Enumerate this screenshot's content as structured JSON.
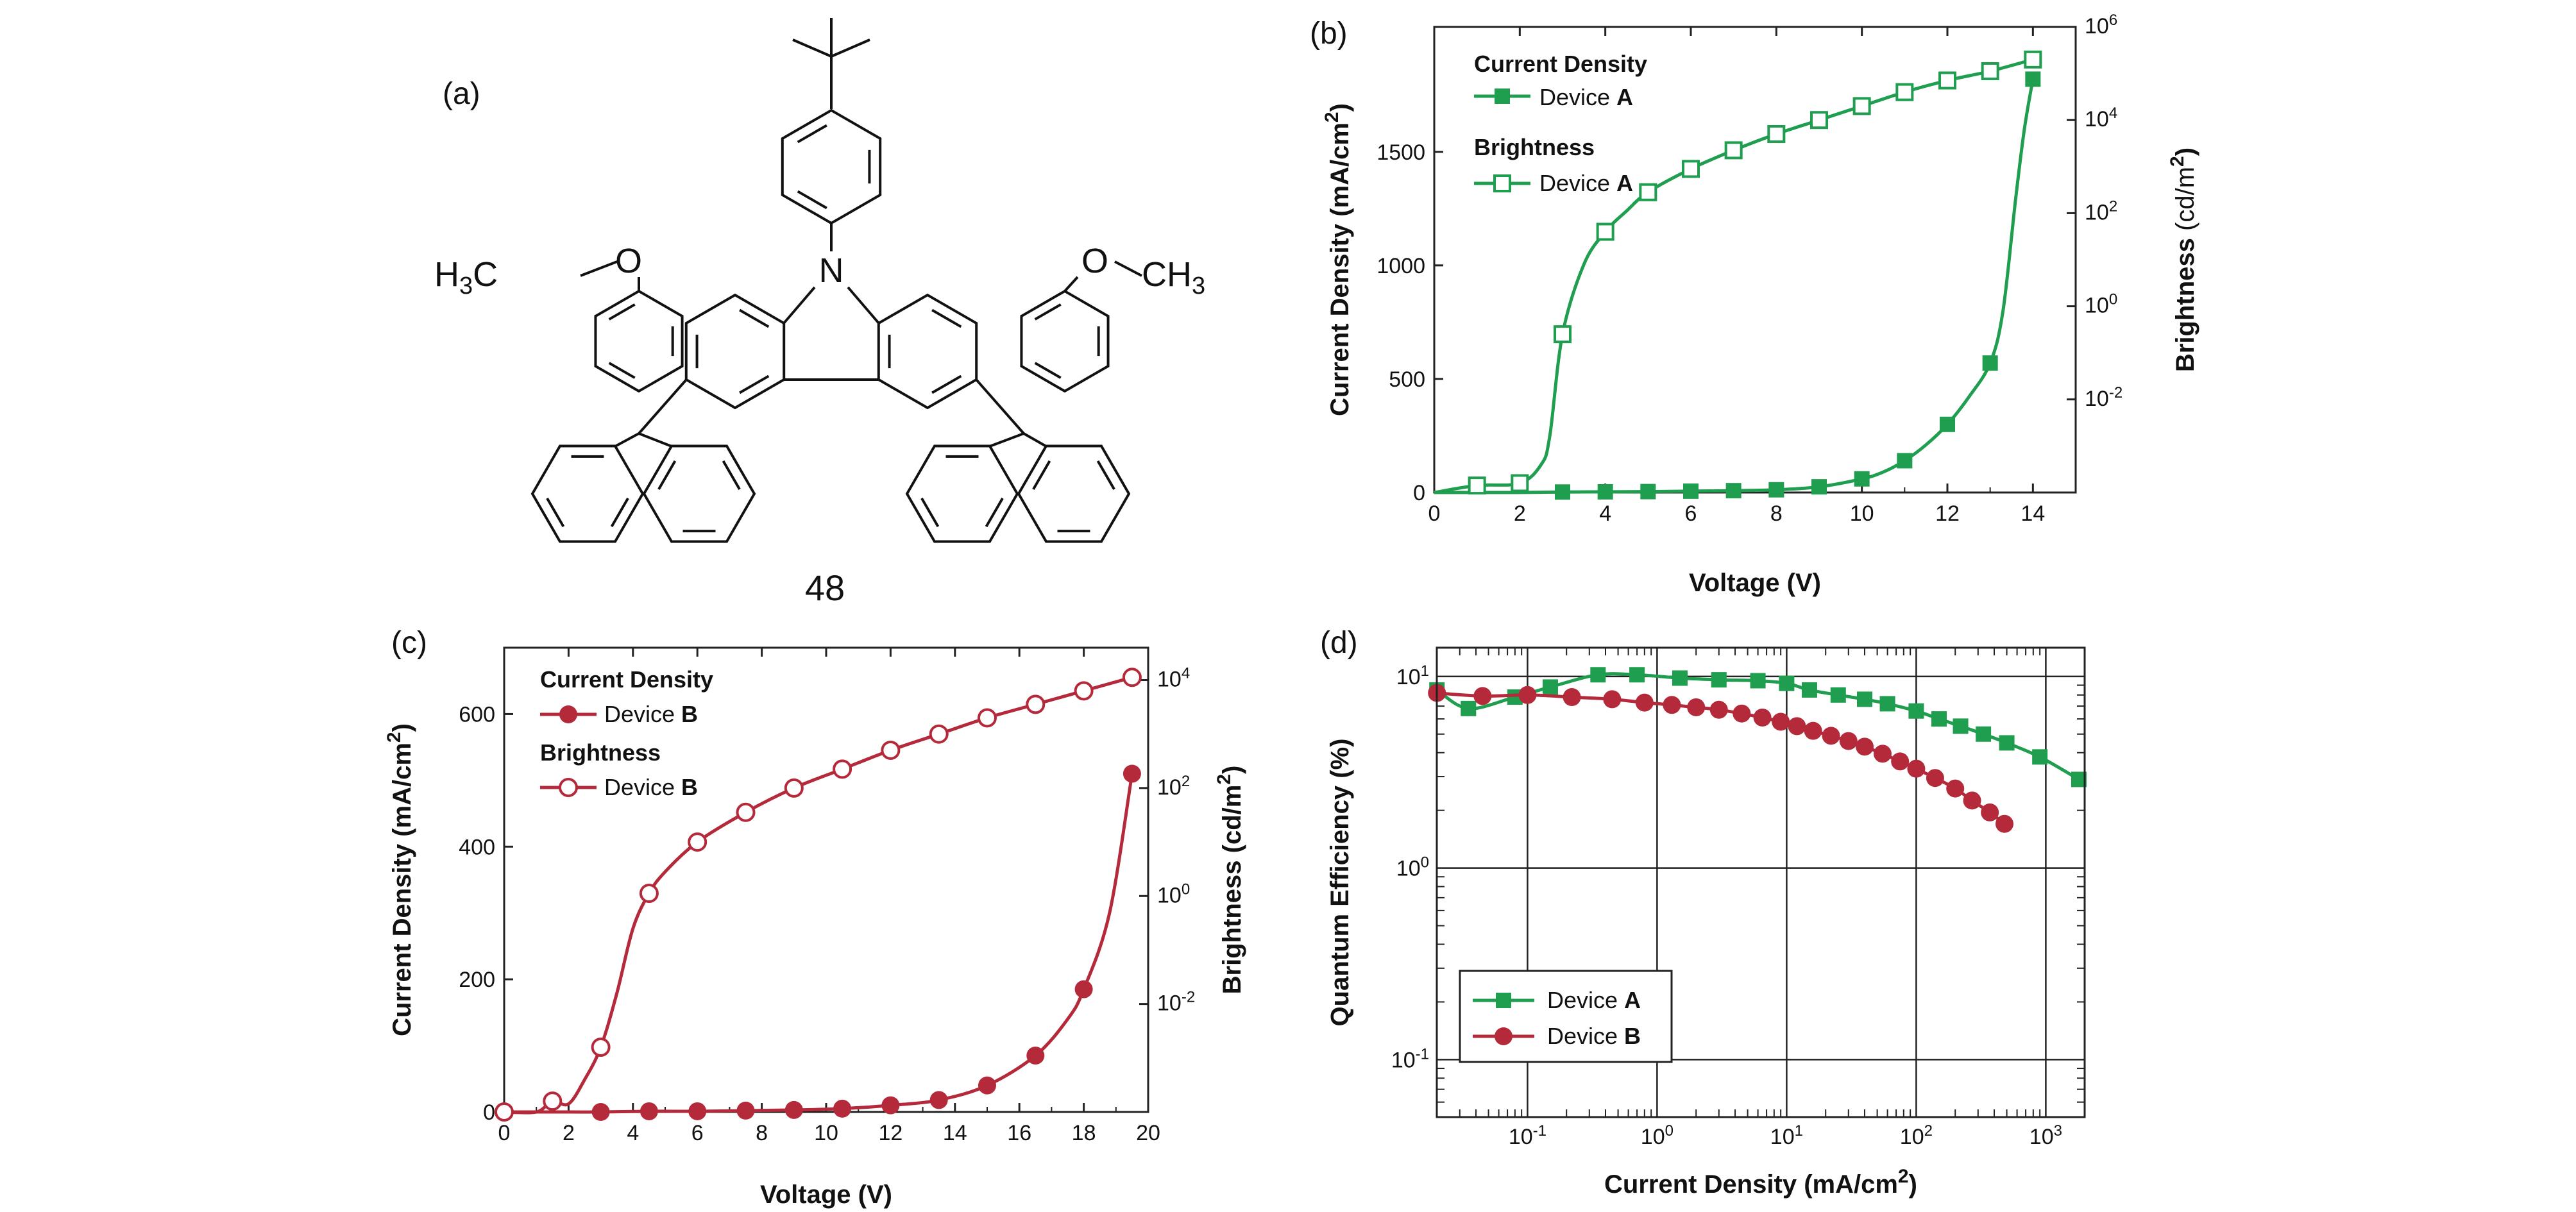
{
  "panel_labels": {
    "a": "(a)",
    "b": "(b)",
    "c": "(c)",
    "d": "(d)"
  },
  "molecule": {
    "compound_number": "48",
    "atoms": {
      "nitrogen": "N",
      "oxygen": "O",
      "left_methoxy_prefix": "H",
      "left_methoxy_sub": "3",
      "left_methoxy_c": "C",
      "right_methyl": "CH",
      "right_methyl_sub": "3"
    }
  },
  "colors": {
    "device_a": "#1e9e4e",
    "device_b": "#b42a3b",
    "axis": "#222222",
    "grid": "#222222"
  },
  "chart_data": [
    {
      "panel": "b",
      "type": "line",
      "xlabel": "Voltage (V)",
      "ylabel_left": "Current Density (mA/cm²)",
      "ylabel_left_parts": {
        "main": "Current Density  (mA/cm",
        "sup": "2",
        "close": ")"
      },
      "ylabel_right_parts": {
        "main": "Brightness ",
        "unit": "(cd/m",
        "sup": "2",
        "close": ")"
      },
      "xlim": [
        0,
        15
      ],
      "ylim_left": [
        0,
        2050
      ],
      "ylim_right_log10": [
        -4,
        6
      ],
      "x_ticks": [
        "0",
        "2",
        "4",
        "6",
        "8",
        "10",
        "12",
        "14"
      ],
      "y_left_ticks": [
        "0",
        "500",
        "1000",
        "1500"
      ],
      "y_right_ticks": [
        {
          "base": "10",
          "exp": "-2",
          "value": -2
        },
        {
          "base": "10",
          "exp": "0",
          "value": 0
        },
        {
          "base": "10",
          "exp": "2",
          "value": 2
        },
        {
          "base": "10",
          "exp": "4",
          "value": 4
        },
        {
          "base": "10",
          "exp": "6",
          "value": 6
        }
      ],
      "legend": {
        "group1_title": "Current Density",
        "item1_text": "Device ",
        "item1_bold": "A",
        "group2_title": "Brightness",
        "item2_text": "Device ",
        "item2_bold": "A",
        "placement": "top-left"
      },
      "series": [
        {
          "name": "Current Density – Device A",
          "axis": "left",
          "marker": "filled-square",
          "line_x": [
            0,
            1,
            2,
            3,
            4,
            5,
            6,
            7,
            8,
            9,
            10,
            10.5,
            11,
            11.5,
            12,
            12.5,
            13,
            13.3,
            13.6,
            13.8,
            14
          ],
          "line_y": [
            0,
            0,
            0,
            2,
            3,
            4,
            6,
            8,
            12,
            25,
            60,
            90,
            140,
            210,
            300,
            420,
            570,
            800,
            1300,
            1600,
            1820
          ],
          "marker_x": [
            3,
            4,
            5,
            6,
            7,
            8,
            9,
            10,
            11,
            12,
            13,
            14
          ],
          "marker_y": [
            2,
            3,
            4,
            6,
            8,
            12,
            25,
            60,
            140,
            300,
            570,
            1820
          ]
        },
        {
          "name": "Brightness – Device A",
          "axis": "right",
          "log": true,
          "marker": "open-square",
          "line_x": [
            0,
            1,
            2,
            2.5,
            2.7,
            3,
            3.5,
            4,
            4.5,
            5,
            6,
            7,
            8,
            9,
            10,
            11,
            12,
            13,
            14
          ],
          "line_y": [
            -4,
            -3.85,
            -3.8,
            -3.4,
            -2.8,
            -0.6,
            0.9,
            1.6,
            2.05,
            2.45,
            2.95,
            3.35,
            3.7,
            4.0,
            4.3,
            4.6,
            4.85,
            5.05,
            5.3
          ],
          "marker_x": [
            1,
            2,
            3,
            4,
            5,
            6,
            7,
            8,
            9,
            10,
            11,
            12,
            13,
            14
          ],
          "marker_y": [
            -3.85,
            -3.8,
            -0.6,
            1.6,
            2.45,
            2.95,
            3.35,
            3.7,
            4.0,
            4.3,
            4.6,
            4.85,
            5.05,
            5.3
          ]
        }
      ]
    },
    {
      "panel": "c",
      "type": "line",
      "xlabel": "Voltage (V)",
      "ylabel_left": "Current Density (mA/cm²)",
      "ylabel_left_parts": {
        "main": "Current Density (mA/cm",
        "sup": "2",
        "close": ")"
      },
      "ylabel_right_parts": {
        "main": "Brightness ",
        "unit": "(cd/m",
        "sup": "2",
        "close": ")"
      },
      "xlim": [
        0,
        20
      ],
      "ylim_left": [
        0,
        700
      ],
      "ylim_right_log10": [
        -4,
        4.6
      ],
      "x_ticks": [
        "0",
        "2",
        "4",
        "6",
        "8",
        "10",
        "12",
        "14",
        "16",
        "18",
        "20"
      ],
      "y_left_ticks": [
        "0",
        "200",
        "400",
        "600"
      ],
      "y_right_ticks": [
        {
          "base": "10",
          "exp": "-2",
          "value": -2
        },
        {
          "base": "10",
          "exp": "0",
          "value": 0
        },
        {
          "base": "10",
          "exp": "2",
          "value": 2
        },
        {
          "base": "10",
          "exp": "4",
          "value": 4
        }
      ],
      "legend": {
        "group1_title": "Current Density",
        "item1_text": "Device ",
        "item1_bold": "B",
        "group2_title": "Brightness",
        "item2_text": "Device ",
        "item2_bold": "B",
        "placement": "top-left"
      },
      "series": [
        {
          "name": "Current Density – Device B",
          "axis": "left",
          "marker": "filled-circle",
          "line_x": [
            0,
            1.5,
            3,
            4.5,
            6,
            7.5,
            9,
            10.5,
            12,
            13.5,
            15,
            16.5,
            17.5,
            18,
            18.8,
            19.5
          ],
          "line_y": [
            0,
            0,
            0,
            1,
            1,
            2,
            3,
            5,
            10,
            18,
            40,
            85,
            140,
            185,
            300,
            510
          ],
          "marker_x": [
            3,
            4.5,
            6,
            7.5,
            9,
            10.5,
            12,
            13.5,
            15,
            16.5,
            18,
            19.5
          ],
          "marker_y": [
            0,
            1,
            1,
            2,
            3,
            5,
            10,
            18,
            40,
            85,
            185,
            510
          ]
        },
        {
          "name": "Brightness – Device B",
          "axis": "right",
          "log": true,
          "marker": "open-circle",
          "line_x": [
            0,
            1,
            1.5,
            2,
            2.5,
            3,
            3.5,
            4,
            4.5,
            5,
            6,
            7.5,
            9,
            10.5,
            12,
            13.5,
            15,
            16.5,
            18,
            19.5
          ],
          "line_y": [
            -4,
            -4,
            -3.8,
            -3.85,
            -3.4,
            -2.8,
            -1.8,
            -0.6,
            0.05,
            0.45,
            1.0,
            1.55,
            2.0,
            2.35,
            2.7,
            3.0,
            3.3,
            3.55,
            3.8,
            4.05
          ],
          "marker_x": [
            0,
            1.5,
            3,
            4.5,
            6,
            7.5,
            9,
            10.5,
            12,
            13.5,
            15,
            16.5,
            18,
            19.5
          ],
          "marker_y": [
            -4,
            -3.8,
            -2.8,
            0.05,
            1.0,
            1.55,
            2.0,
            2.35,
            2.7,
            3.0,
            3.3,
            3.55,
            3.8,
            4.05
          ]
        }
      ]
    },
    {
      "panel": "d",
      "type": "line",
      "xscale": "log",
      "yscale": "log",
      "xlabel_parts": {
        "main": "Current Density (mA/cm",
        "sup": "2",
        "close": ")"
      },
      "ylabel": "Quantum Efficiency  (%)",
      "xlim_log10": [
        -1.7,
        3.3
      ],
      "ylim_log10": [
        -1.3,
        1.15
      ],
      "x_ticks": [
        {
          "base": "10",
          "exp": "-1",
          "value": -1
        },
        {
          "base": "10",
          "exp": "0",
          "value": 0
        },
        {
          "base": "10",
          "exp": "1",
          "value": 1
        },
        {
          "base": "10",
          "exp": "2",
          "value": 2
        },
        {
          "base": "10",
          "exp": "3",
          "value": 3
        }
      ],
      "y_ticks": [
        {
          "base": "10",
          "exp": "-1",
          "value": -1
        },
        {
          "base": "10",
          "exp": "0",
          "value": 0
        },
        {
          "base": "10",
          "exp": "1",
          "value": 1
        }
      ],
      "grid": true,
      "legend": {
        "item1": "Device ",
        "item1_bold": "A",
        "item2": "Device ",
        "item2_bold": "B",
        "placement": "bottom-left"
      },
      "series": [
        {
          "name": "Device A",
          "marker": "filled-square",
          "x": [
            0.02,
            0.035,
            0.08,
            0.15,
            0.35,
            0.7,
            1.5,
            3,
            6,
            10,
            15,
            25,
            40,
            60,
            100,
            150,
            220,
            330,
            500,
            900,
            1800
          ],
          "y": [
            8.5,
            6.8,
            7.8,
            8.8,
            10.2,
            10.2,
            9.8,
            9.6,
            9.5,
            9.2,
            8.5,
            8.0,
            7.6,
            7.2,
            6.6,
            6.0,
            5.5,
            5.0,
            4.5,
            3.8,
            2.9
          ]
        },
        {
          "name": "Device B",
          "marker": "filled-circle",
          "x": [
            0.02,
            0.045,
            0.1,
            0.22,
            0.45,
            0.8,
            1.3,
            2,
            3,
            4.5,
            6.5,
            9,
            12,
            16,
            22,
            30,
            40,
            55,
            75,
            100,
            140,
            200,
            270,
            370,
            480
          ],
          "y": [
            8.2,
            7.9,
            8.0,
            7.8,
            7.6,
            7.3,
            7.1,
            6.9,
            6.7,
            6.4,
            6.1,
            5.8,
            5.5,
            5.2,
            4.9,
            4.6,
            4.3,
            3.95,
            3.6,
            3.3,
            2.95,
            2.6,
            2.25,
            1.95,
            1.7
          ]
        }
      ]
    }
  ]
}
